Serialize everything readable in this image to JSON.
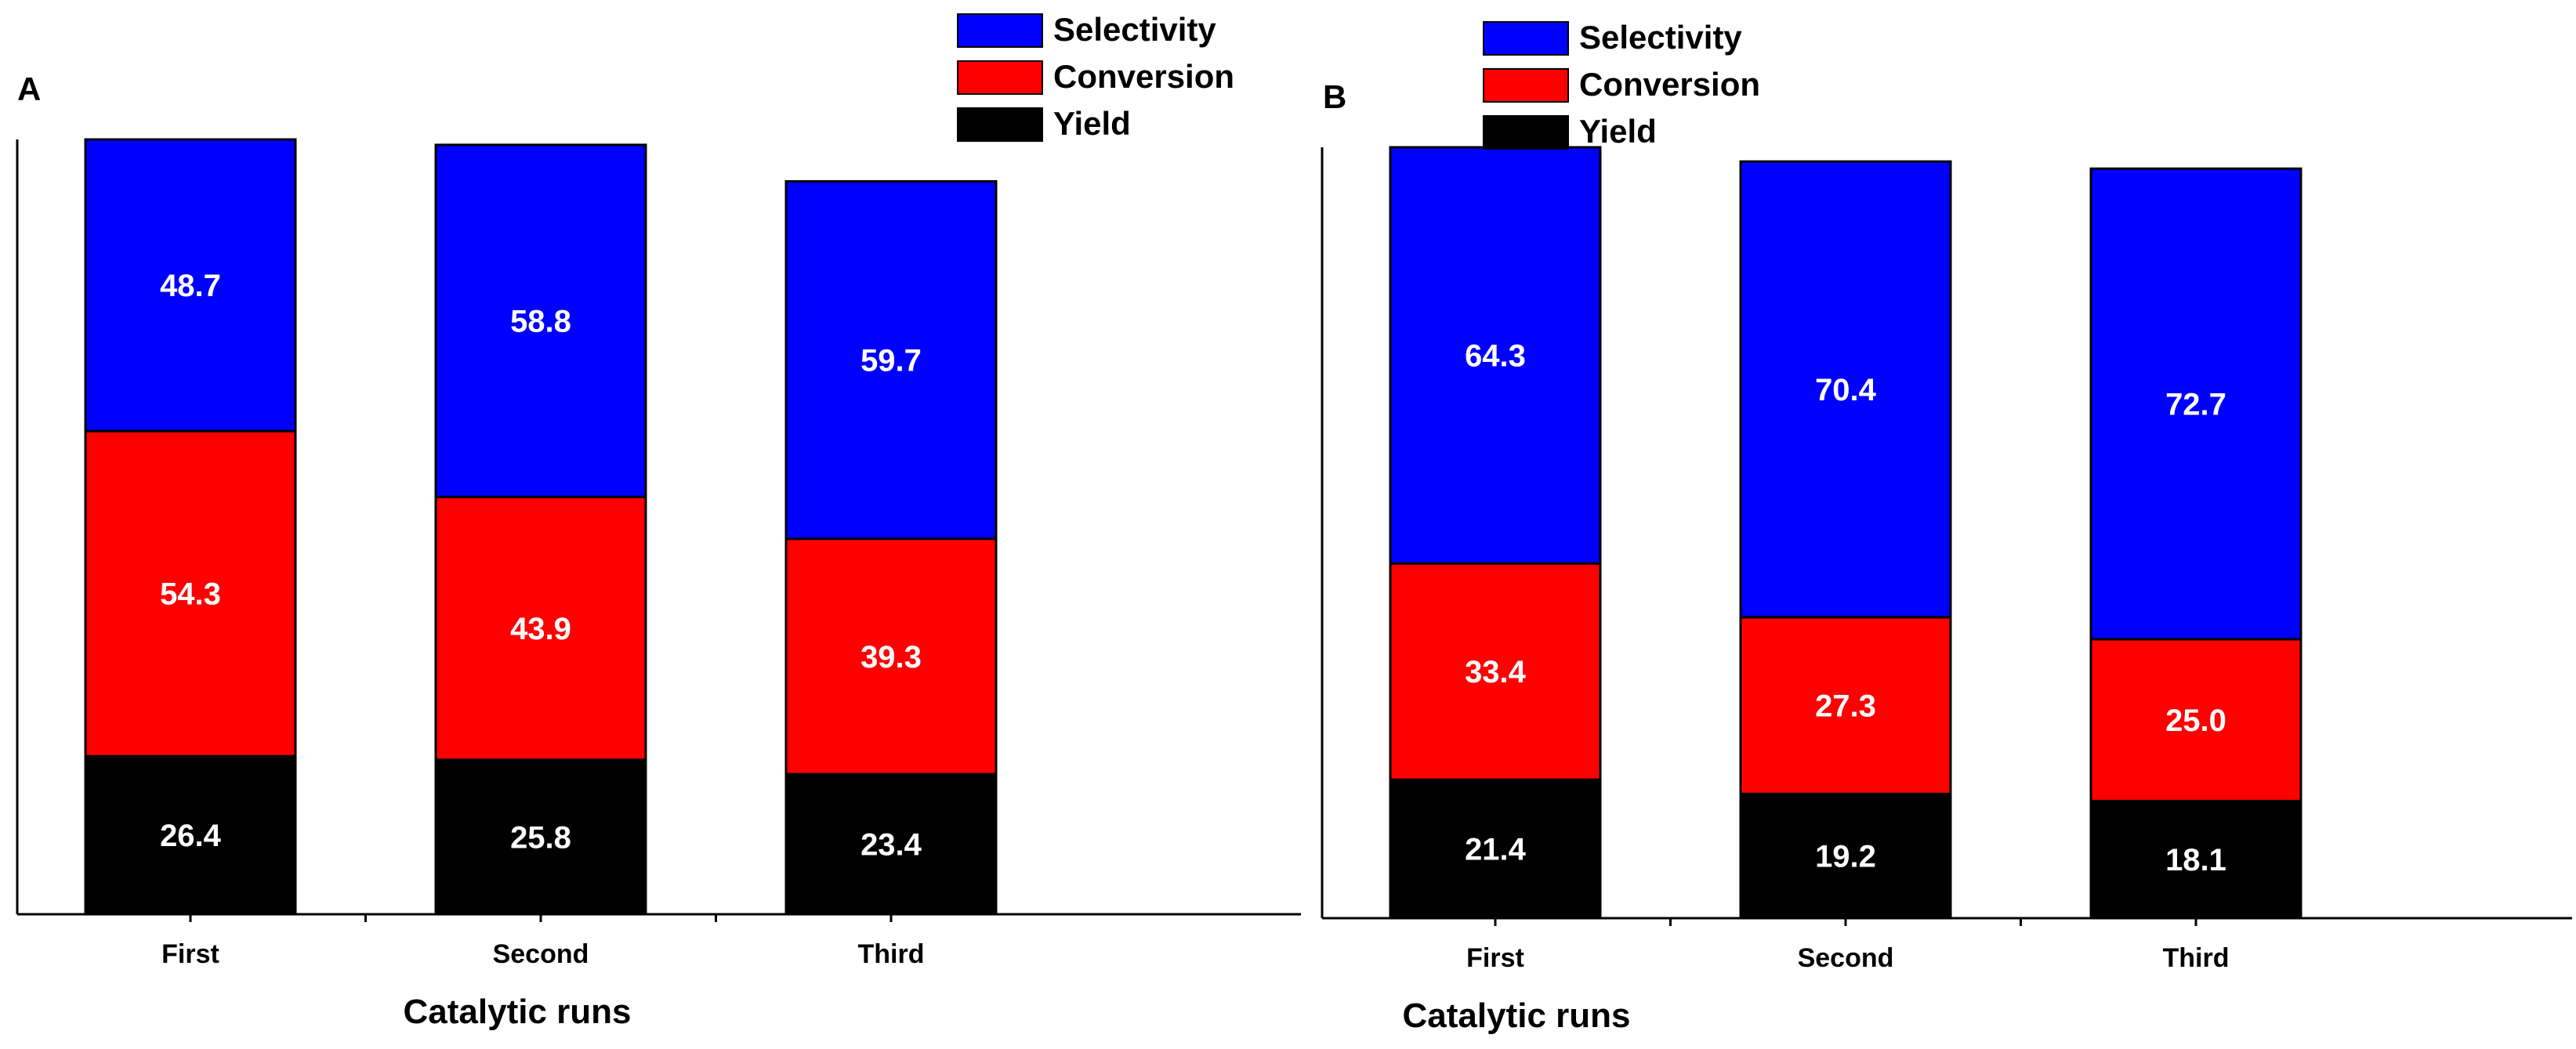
{
  "chart_data": [
    {
      "panel": "A",
      "type": "bar",
      "stacked": true,
      "xlabel": "Catalytic runs",
      "ylabel": "",
      "categories": [
        "First",
        "Second",
        "Third"
      ],
      "series": [
        {
          "name": "Yield",
          "color": "#000000",
          "values": [
            26.4,
            25.8,
            23.4
          ]
        },
        {
          "name": "Conversion",
          "color": "#ff0000",
          "values": [
            54.3,
            43.9,
            39.3
          ]
        },
        {
          "name": "Selectivity",
          "color": "#0000ff",
          "values": [
            48.7,
            58.8,
            59.7
          ]
        }
      ],
      "legend": [
        {
          "label": "Selectivity",
          "color": "#0000ff"
        },
        {
          "label": "Conversion",
          "color": "#ff0000"
        },
        {
          "label": "Yield",
          "color": "#000000"
        }
      ],
      "legend_position": "top-right",
      "ylim": [
        0,
        129.4
      ]
    },
    {
      "panel": "B",
      "type": "bar",
      "stacked": true,
      "xlabel": "Catalytic runs",
      "ylabel": "",
      "categories": [
        "First",
        "Second",
        "Third"
      ],
      "series": [
        {
          "name": "Yield",
          "color": "#000000",
          "values": [
            21.4,
            19.2,
            18.1
          ]
        },
        {
          "name": "Conversion",
          "color": "#ff0000",
          "values": [
            33.4,
            27.3,
            25.0
          ]
        },
        {
          "name": "Selectivity",
          "color": "#0000ff",
          "values": [
            64.3,
            70.4,
            72.7
          ]
        }
      ],
      "legend": [
        {
          "label": "Selectivity",
          "color": "#0000ff"
        },
        {
          "label": "Conversion",
          "color": "#ff0000"
        },
        {
          "label": "Yield",
          "color": "#000000"
        }
      ],
      "legend_position": "top-right",
      "ylim": [
        0,
        119.1
      ]
    }
  ]
}
